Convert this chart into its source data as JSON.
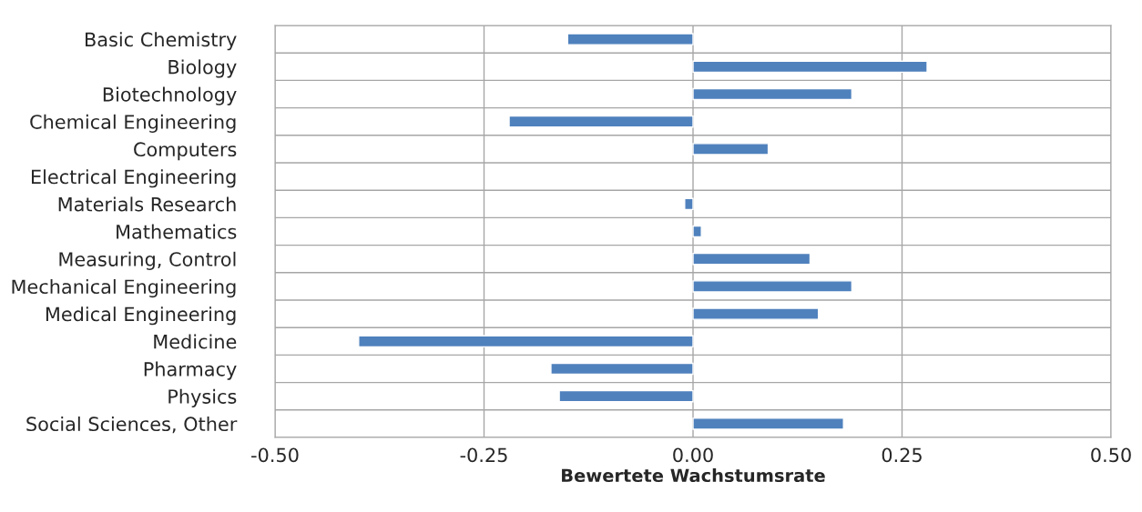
{
  "chart_data": {
    "type": "bar",
    "orientation": "horizontal",
    "xlabel": "Bewertete Wachstumsrate",
    "categories": [
      "Basic Chemistry",
      "Biology",
      "Biotechnology",
      "Chemical Engineering",
      "Computers",
      "Electrical Engineering",
      "Materials Research",
      "Mathematics",
      "Measuring, Control",
      "Mechanical Engineering",
      "Medical Engineering",
      "Medicine",
      "Pharmacy",
      "Physics",
      "Social Sciences, Other"
    ],
    "values": [
      -0.15,
      0.28,
      0.19,
      -0.22,
      0.09,
      null,
      -0.01,
      0.01,
      0.14,
      0.19,
      0.15,
      -0.4,
      -0.17,
      -0.16,
      0.18
    ],
    "color": "#4f81bd",
    "xlim": [
      -0.5,
      0.5
    ],
    "xticks": [
      {
        "value": -0.5,
        "label": "-0.50"
      },
      {
        "value": -0.25,
        "label": "-0.25"
      },
      {
        "value": 0,
        "label": "0.00"
      },
      {
        "value": 0.25,
        "label": "0.25"
      },
      {
        "value": 0.5,
        "label": "0.50"
      }
    ],
    "grid": true
  }
}
